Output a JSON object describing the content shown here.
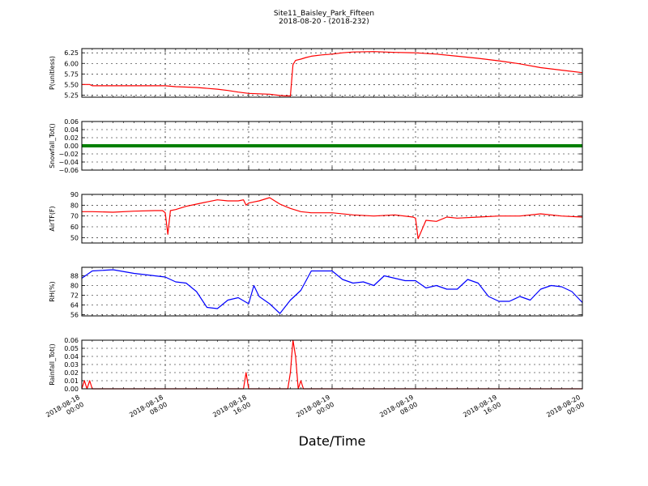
{
  "figure": {
    "title": "Site11_Baisley_Park_Fifteen",
    "subtitle": "2018-08-20 - (2018-232)",
    "xlabel": "Date/Time"
  },
  "chart_data": [
    {
      "type": "line",
      "ylabel": "P(unitless)",
      "color": "#ff0000",
      "xlim": [
        "2018-08-18 00:00",
        "2018-08-20 00:00"
      ],
      "ylim": [
        5.2,
        6.35
      ],
      "yticks": [
        5.25,
        5.5,
        5.75,
        6.0,
        6.25
      ],
      "ytick_labels": [
        "5.25",
        "5.50",
        "5.75",
        "6.00",
        "6.25"
      ],
      "grid": true,
      "x": [
        "2018-08-18 00:00",
        "2018-08-18 00:45",
        "2018-08-18 01:00",
        "2018-08-18 03:00",
        "2018-08-18 06:00",
        "2018-08-18 08:00",
        "2018-08-18 09:00",
        "2018-08-18 11:00",
        "2018-08-18 13:00",
        "2018-08-18 14:00",
        "2018-08-18 15:00",
        "2018-08-18 16:00",
        "2018-08-18 17:00",
        "2018-08-18 18:00",
        "2018-08-18 19:00",
        "2018-08-18 19:30",
        "2018-08-18 20:00",
        "2018-08-18 20:15",
        "2018-08-18 20:30",
        "2018-08-18 21:00",
        "2018-08-18 21:30",
        "2018-08-18 22:00",
        "2018-08-18 23:00",
        "2018-08-19 00:00",
        "2018-08-19 01:00",
        "2018-08-19 02:00",
        "2018-08-19 04:00",
        "2018-08-19 06:00",
        "2018-08-19 08:00",
        "2018-08-19 10:00",
        "2018-08-19 12:00",
        "2018-08-19 14:00",
        "2018-08-19 16:00",
        "2018-08-19 18:00",
        "2018-08-19 20:00",
        "2018-08-19 22:00",
        "2018-08-20 00:00"
      ],
      "y": [
        5.5,
        5.5,
        5.47,
        5.47,
        5.47,
        5.47,
        5.45,
        5.43,
        5.39,
        5.36,
        5.32,
        5.29,
        5.28,
        5.27,
        5.24,
        5.23,
        5.23,
        5.97,
        6.07,
        6.1,
        6.14,
        6.17,
        6.2,
        6.22,
        6.25,
        6.27,
        6.28,
        6.26,
        6.25,
        6.22,
        6.17,
        6.12,
        6.06,
        5.99,
        5.9,
        5.84,
        5.78
      ]
    },
    {
      "type": "line",
      "ylabel": "Snowfall_Tot()",
      "color": "#008000",
      "xlim": [
        "2018-08-18 00:00",
        "2018-08-20 00:00"
      ],
      "ylim": [
        -0.06,
        0.06
      ],
      "yticks": [
        -0.06,
        -0.04,
        -0.02,
        0.0,
        0.02,
        0.04,
        0.06
      ],
      "ytick_labels": [
        "−0.06",
        "−0.04",
        "−0.02",
        "0.00",
        "0.02",
        "0.04",
        "0.06"
      ],
      "grid": true,
      "x": [
        "2018-08-18 00:00",
        "2018-08-20 00:00"
      ],
      "y": [
        0.0,
        0.0
      ]
    },
    {
      "type": "line",
      "ylabel": "AirTF(F)",
      "color": "#ff0000",
      "xlim": [
        "2018-08-18 00:00",
        "2018-08-20 00:00"
      ],
      "ylim": [
        45,
        90
      ],
      "yticks": [
        50,
        60,
        70,
        80,
        90
      ],
      "ytick_labels": [
        "50",
        "60",
        "70",
        "80",
        "90"
      ],
      "grid": true,
      "x": [
        "2018-08-18 00:00",
        "2018-08-18 01:00",
        "2018-08-18 03:00",
        "2018-08-18 05:00",
        "2018-08-18 07:00",
        "2018-08-18 07:45",
        "2018-08-18 08:00",
        "2018-08-18 08:15",
        "2018-08-18 08:30",
        "2018-08-18 09:00",
        "2018-08-18 10:00",
        "2018-08-18 11:00",
        "2018-08-18 12:00",
        "2018-08-18 13:00",
        "2018-08-18 14:00",
        "2018-08-18 15:00",
        "2018-08-18 15:30",
        "2018-08-18 15:45",
        "2018-08-18 16:00",
        "2018-08-18 16:30",
        "2018-08-18 17:00",
        "2018-08-18 18:00",
        "2018-08-18 19:00",
        "2018-08-18 20:00",
        "2018-08-18 21:00",
        "2018-08-18 22:00",
        "2018-08-19 00:00",
        "2018-08-19 02:00",
        "2018-08-19 04:00",
        "2018-08-19 06:00",
        "2018-08-19 07:45",
        "2018-08-19 08:00",
        "2018-08-19 08:15",
        "2018-08-19 09:00",
        "2018-08-19 10:00",
        "2018-08-19 11:00",
        "2018-08-19 12:00",
        "2018-08-19 14:00",
        "2018-08-19 16:00",
        "2018-08-19 18:00",
        "2018-08-19 20:00",
        "2018-08-19 22:00",
        "2018-08-20 00:00"
      ],
      "y": [
        74,
        74,
        73.5,
        74.5,
        75,
        75,
        73,
        53,
        75,
        76,
        79,
        81,
        83,
        85,
        84,
        84,
        85,
        80,
        82,
        83,
        84,
        87,
        81,
        77,
        74,
        73,
        73,
        71,
        70,
        71,
        69,
        68,
        49,
        66,
        65,
        69,
        68,
        69,
        70,
        70,
        72,
        70,
        69
      ]
    },
    {
      "type": "line",
      "ylabel": "RH(%)",
      "color": "#0000ff",
      "xlim": [
        "2018-08-18 00:00",
        "2018-08-20 00:00"
      ],
      "ylim": [
        55,
        95
      ],
      "yticks": [
        56,
        64,
        72,
        80,
        88
      ],
      "ytick_labels": [
        "56",
        "64",
        "72",
        "80",
        "88"
      ],
      "grid": true,
      "x": [
        "2018-08-18 00:00",
        "2018-08-18 01:00",
        "2018-08-18 03:00",
        "2018-08-18 05:00",
        "2018-08-18 07:00",
        "2018-08-18 08:00",
        "2018-08-18 09:00",
        "2018-08-18 10:00",
        "2018-08-18 11:00",
        "2018-08-18 12:00",
        "2018-08-18 13:00",
        "2018-08-18 14:00",
        "2018-08-18 15:00",
        "2018-08-18 16:00",
        "2018-08-18 16:30",
        "2018-08-18 17:00",
        "2018-08-18 18:00",
        "2018-08-18 19:00",
        "2018-08-18 20:00",
        "2018-08-18 21:00",
        "2018-08-18 22:00",
        "2018-08-19 00:00",
        "2018-08-19 01:00",
        "2018-08-19 02:00",
        "2018-08-19 03:00",
        "2018-08-19 04:00",
        "2018-08-19 05:00",
        "2018-08-19 06:00",
        "2018-08-19 07:00",
        "2018-08-19 08:00",
        "2018-08-19 09:00",
        "2018-08-19 10:00",
        "2018-08-19 11:00",
        "2018-08-19 12:00",
        "2018-08-19 13:00",
        "2018-08-19 14:00",
        "2018-08-19 15:00",
        "2018-08-19 16:00",
        "2018-08-19 17:00",
        "2018-08-19 18:00",
        "2018-08-19 19:00",
        "2018-08-19 20:00",
        "2018-08-19 21:00",
        "2018-08-19 22:00",
        "2018-08-19 23:00",
        "2018-08-20 00:00"
      ],
      "y": [
        86,
        92,
        93,
        90,
        88,
        87,
        83,
        82,
        75,
        62,
        61,
        68,
        70,
        65,
        80,
        71,
        65,
        57,
        68,
        76,
        92,
        92,
        85,
        82,
        83,
        80,
        88,
        86,
        84,
        84,
        78,
        80,
        77,
        77,
        85,
        82,
        71,
        67,
        67,
        71,
        68,
        77,
        80,
        79,
        75,
        66
      ]
    },
    {
      "type": "line",
      "ylabel": "Rainfall_Tot()",
      "color": "#ff0000",
      "xlim": [
        "2018-08-18 00:00",
        "2018-08-20 00:00"
      ],
      "ylim": [
        0.0,
        0.06
      ],
      "yticks": [
        0.0,
        0.01,
        0.02,
        0.03,
        0.04,
        0.05,
        0.06
      ],
      "ytick_labels": [
        "0.00",
        "0.01",
        "0.02",
        "0.03",
        "0.04",
        "0.05",
        "0.06"
      ],
      "grid": true,
      "xticks": [
        "2018-08-18 00:00",
        "2018-08-18 08:00",
        "2018-08-18 16:00",
        "2018-08-19 00:00",
        "2018-08-19 08:00",
        "2018-08-19 16:00",
        "2018-08-20 00:00"
      ],
      "xtick_labels": [
        [
          "2018-08-18",
          "00:00"
        ],
        [
          "2018-08-18",
          "08:00"
        ],
        [
          "2018-08-18",
          "16:00"
        ],
        [
          "2018-08-19",
          "00:00"
        ],
        [
          "2018-08-19",
          "08:00"
        ],
        [
          "2018-08-19",
          "16:00"
        ],
        [
          "2018-08-20",
          "00:00"
        ]
      ],
      "x": [
        "2018-08-18 00:00",
        "2018-08-18 00:15",
        "2018-08-18 00:30",
        "2018-08-18 00:45",
        "2018-08-18 01:00",
        "2018-08-18 01:15",
        "2018-08-18 15:30",
        "2018-08-18 15:45",
        "2018-08-18 16:00",
        "2018-08-18 19:45",
        "2018-08-18 20:00",
        "2018-08-18 20:15",
        "2018-08-18 20:30",
        "2018-08-18 20:45",
        "2018-08-18 21:00",
        "2018-08-18 21:15",
        "2018-08-20 00:00"
      ],
      "y": [
        0,
        0.01,
        0,
        0.01,
        0,
        0,
        0,
        0.02,
        0,
        0,
        0.02,
        0.06,
        0.04,
        0,
        0.01,
        0,
        0
      ]
    }
  ]
}
